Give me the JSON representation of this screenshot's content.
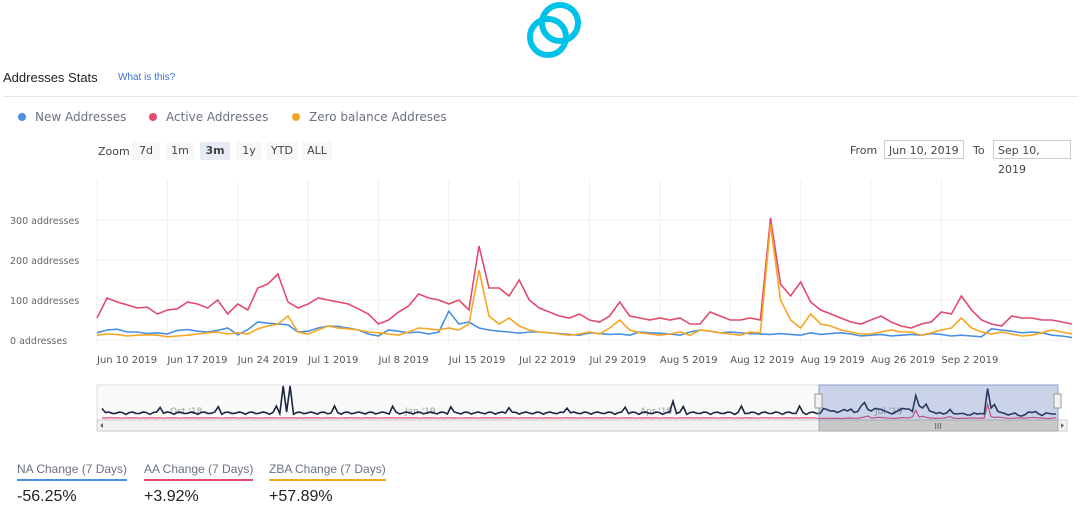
{
  "header": {
    "title": "Addresses Stats",
    "help_link": "What is this?"
  },
  "legend": [
    {
      "label": "New Addresses",
      "color": "#4a90e2"
    },
    {
      "label": "Active Addresses",
      "color": "#e24a6e"
    },
    {
      "label": "Zero balance Addreses",
      "color": "#f5a623"
    }
  ],
  "zoom": {
    "label": "Zoom",
    "options": [
      "7d",
      "1m",
      "3m",
      "1y",
      "YTD",
      "ALL"
    ],
    "selected": "3m"
  },
  "range": {
    "from_label": "From",
    "from_value": "Jun 10, 2019",
    "to_label": "To",
    "to_value": "Sep 10, 2019"
  },
  "navigator": {
    "labels": [
      "Oct '18",
      "Jan '19",
      "Apr '19",
      "Jul '19"
    ],
    "scroll_grip": "III"
  },
  "changes": [
    {
      "title": "NA Change (7 Days)",
      "value": "-56.25%",
      "color": "#4a90e2"
    },
    {
      "title": "AA Change (7 Days)",
      "value": "+3.92%",
      "color": "#e24a6e"
    },
    {
      "title": "ZBA Change (7 Days)",
      "value": "+57.89%",
      "color": "#f5a623"
    }
  ],
  "chart_data": {
    "type": "line",
    "x_tick_labels": [
      "Jun 10 2019",
      "Jun 17 2019",
      "Jun 24 2019",
      "Jul 1 2019",
      "Jul 8 2019",
      "Jul 15 2019",
      "Jul 22 2019",
      "Jul 29 2019",
      "Aug 5 2019",
      "Aug 12 2019",
      "Aug 19 2019",
      "Aug 26 2019",
      "Sep 2 2019"
    ],
    "y_tick_labels": [
      "0 addresses",
      "100 addresses",
      "200 addresses",
      "300 addresses"
    ],
    "y_ticks": [
      0,
      100,
      200,
      300
    ],
    "ylim": [
      0,
      400
    ],
    "x_start": "Jun 10 2019",
    "grid": true,
    "series": [
      {
        "name": "New Addresses",
        "color": "#4a90e2",
        "values": [
          18,
          25,
          27,
          20,
          20,
          16,
          18,
          15,
          24,
          26,
          22,
          20,
          24,
          30,
          13,
          26,
          45,
          42,
          40,
          38,
          20,
          22,
          30,
          35,
          34,
          30,
          25,
          15,
          10,
          25,
          22,
          18,
          20,
          15,
          20,
          72,
          40,
          45,
          30,
          25,
          22,
          20,
          17,
          20,
          20,
          18,
          16,
          14,
          12,
          18,
          16,
          14,
          15,
          12,
          20,
          18,
          17,
          15,
          12,
          20,
          25,
          22,
          18,
          20,
          18,
          16,
          15,
          14,
          16,
          14,
          12,
          18,
          14,
          16,
          18,
          15,
          10,
          12,
          14,
          10,
          12,
          14,
          12,
          16,
          14,
          10,
          12,
          10,
          8,
          28,
          25,
          22,
          18,
          20,
          18,
          12,
          10,
          6
        ]
      },
      {
        "name": "Active Addresses",
        "color": "#e24a6e",
        "values": [
          55,
          105,
          95,
          88,
          80,
          82,
          65,
          75,
          78,
          95,
          90,
          80,
          100,
          65,
          90,
          75,
          130,
          140,
          165,
          95,
          80,
          90,
          105,
          100,
          95,
          90,
          78,
          65,
          40,
          50,
          70,
          85,
          115,
          105,
          100,
          90,
          100,
          75,
          235,
          130,
          130,
          110,
          150,
          100,
          80,
          70,
          60,
          55,
          65,
          50,
          45,
          60,
          95,
          60,
          55,
          50,
          55,
          50,
          55,
          40,
          40,
          70,
          60,
          50,
          50,
          55,
          50,
          305,
          140,
          110,
          145,
          95,
          75,
          65,
          55,
          45,
          40,
          50,
          60,
          45,
          35,
          30,
          40,
          45,
          70,
          65,
          110,
          75,
          50,
          40,
          35,
          60,
          55,
          55,
          50,
          50,
          45,
          40
        ]
      },
      {
        "name": "Zero balance Addreses",
        "color": "#f5a623",
        "values": [
          12,
          15,
          14,
          10,
          12,
          13,
          12,
          8,
          10,
          12,
          15,
          18,
          20,
          15,
          18,
          15,
          28,
          35,
          40,
          60,
          20,
          15,
          25,
          35,
          30,
          28,
          25,
          20,
          18,
          15,
          12,
          20,
          30,
          28,
          25,
          30,
          25,
          40,
          175,
          60,
          40,
          55,
          35,
          25,
          20,
          18,
          15,
          12,
          15,
          20,
          15,
          30,
          50,
          25,
          18,
          15,
          12,
          15,
          20,
          12,
          25,
          22,
          18,
          15,
          12,
          20,
          18,
          290,
          100,
          50,
          30,
          65,
          40,
          35,
          25,
          20,
          15,
          15,
          20,
          25,
          20,
          20,
          12,
          18,
          25,
          30,
          55,
          30,
          20,
          15,
          20,
          15,
          10,
          12,
          18,
          25,
          20,
          15
        ]
      }
    ]
  }
}
